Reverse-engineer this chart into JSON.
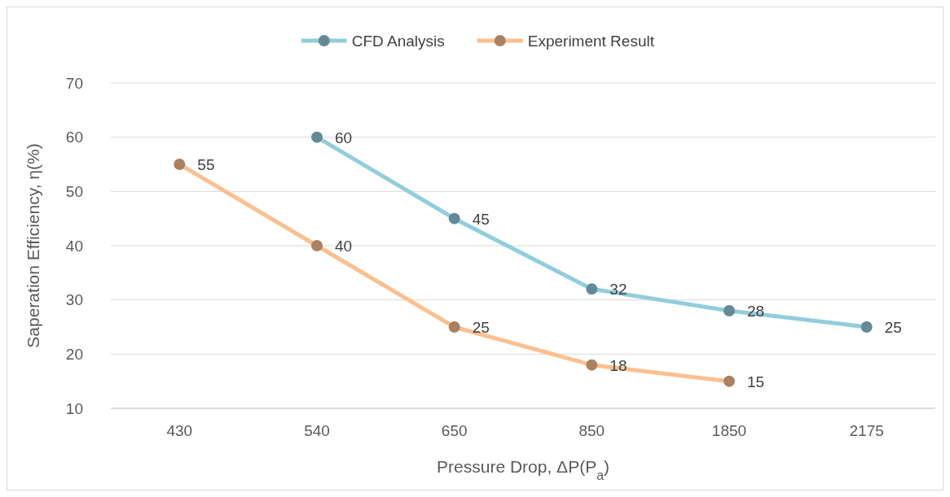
{
  "chart_data": {
    "type": "line",
    "xlabel": "Pressure Drop, ΔP(P$_{a}$)",
    "ylabel": "Saperation Efficiency, η(%)",
    "categories": [
      "430",
      "540",
      "650",
      "850",
      "1850",
      "2175"
    ],
    "series": [
      {
        "name": "CFD Analysis",
        "color": "#92cddc",
        "values": [
          null,
          60,
          45,
          32,
          28,
          25
        ]
      },
      {
        "name": "Experiment Result",
        "color": "#fac090",
        "values": [
          55,
          40,
          25,
          18,
          15,
          null
        ]
      }
    ],
    "ylim": [
      10,
      70
    ],
    "yticks": [
      10,
      20,
      30,
      40,
      50,
      60,
      70
    ],
    "grid": "y",
    "legend": "top",
    "marker": "circle",
    "line_style": "solid",
    "data_labels": true
  }
}
